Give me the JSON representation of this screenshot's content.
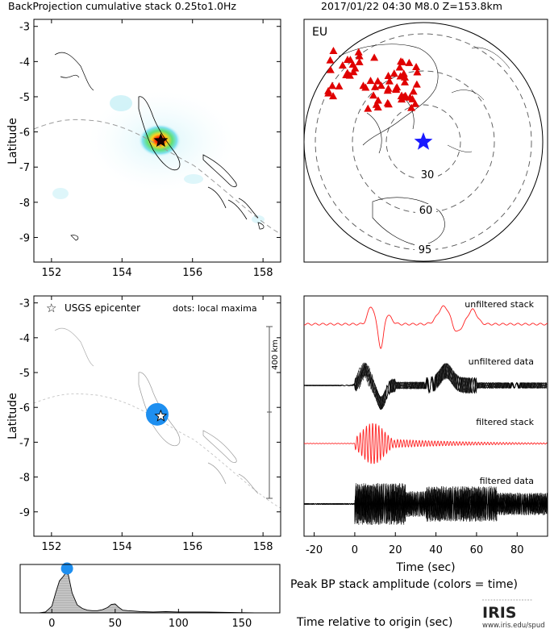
{
  "header": {
    "left_title": "BackProjection cumulative stack 0.25to1.0Hz",
    "right_title": "2017/01/22 04:30  M8.0  Z=153.8km"
  },
  "colors": {
    "frame": "#000000",
    "dashed": "#8a8a8a",
    "station": "#e00000",
    "epicenter_blue": "#1a1aff",
    "bp_blue": "#1e8ff0",
    "stack_red": "#ff2020",
    "data_black": "#000000",
    "peak_fill": "#b4b4b4"
  },
  "map_panel": {
    "ylabel": "Latitude",
    "xticks": [
      "152",
      "154",
      "156",
      "158"
    ],
    "yticks": [
      "-3",
      "-4",
      "-5",
      "-6",
      "-7",
      "-8",
      "-9"
    ],
    "epicenter_lon": 155.1,
    "epicenter_lat": -6.25
  },
  "globe_panel": {
    "region_label": "EU",
    "ring_labels": [
      "30",
      "60",
      "95"
    ]
  },
  "maxima_panel": {
    "ylabel": "Latitude",
    "xticks": [
      "152",
      "154",
      "156",
      "158"
    ],
    "yticks": [
      "-3",
      "-4",
      "-5",
      "-6",
      "-7",
      "-8",
      "-9"
    ],
    "legend_epicenter": "USGS epicenter",
    "legend_dots": "dots: local maxima",
    "scale_label": "400 km",
    "maximum_lon": 155.0,
    "maximum_lat": -6.2
  },
  "waveform_panel": {
    "xlabel": "Time (sec)",
    "xticks": [
      "-20",
      "0",
      "20",
      "40",
      "60",
      "80"
    ],
    "trace_labels": [
      "unfiltered stack",
      "unfiltered data",
      "filtered stack",
      "filtered data"
    ]
  },
  "peak_panel": {
    "title": "Peak BP stack amplitude (colors = time)",
    "xlabel": "Time relative to origin (sec)",
    "xticks": [
      "0",
      "50",
      "100",
      "150"
    ]
  },
  "logo": {
    "name": "IRIS",
    "url": "www.iris.edu/spud"
  },
  "chart_data": [
    {
      "type": "heatmap",
      "title": "BackProjection cumulative stack 0.25to1.0Hz",
      "ylabel": "Latitude",
      "xlim": [
        151.5,
        158.5
      ],
      "ylim": [
        -9.7,
        -2.8
      ],
      "peak": {
        "lon": 155.1,
        "lat": -6.25
      }
    },
    {
      "type": "scatter",
      "title": "2017/01/22 04:30  M8.0  Z=153.8km",
      "annotations": [
        "EU",
        "30",
        "60",
        "95"
      ]
    },
    {
      "type": "scatter",
      "ylabel": "Latitude",
      "xlim": [
        151.5,
        158.5
      ],
      "ylim": [
        -9.7,
        -2.8
      ],
      "points": [
        {
          "lon": 155.0,
          "lat": -6.2
        }
      ],
      "epicenter": {
        "lon": 155.1,
        "lat": -6.25
      }
    },
    {
      "type": "line",
      "xlabel": "Time (sec)",
      "xlim": [
        -25,
        95
      ],
      "series": [
        {
          "name": "unfiltered stack"
        },
        {
          "name": "unfiltered data"
        },
        {
          "name": "filtered stack"
        },
        {
          "name": "filtered data"
        }
      ]
    },
    {
      "type": "area",
      "title": "Peak BP stack amplitude (colors = time)",
      "xlabel": "Time relative to origin (sec)",
      "xlim": [
        -25,
        180
      ],
      "ylim": [
        0,
        1
      ],
      "x": [
        -25,
        -10,
        -5,
        0,
        3,
        6,
        9,
        11,
        13,
        16,
        20,
        24,
        28,
        32,
        36,
        40,
        44,
        47,
        50,
        53,
        56,
        60,
        65,
        70,
        80,
        90,
        100,
        110,
        120,
        140,
        160,
        180
      ],
      "y": [
        0.0,
        0.0,
        0.02,
        0.15,
        0.45,
        0.72,
        0.82,
        0.9,
        0.86,
        0.45,
        0.18,
        0.1,
        0.06,
        0.05,
        0.05,
        0.07,
        0.12,
        0.19,
        0.2,
        0.12,
        0.06,
        0.05,
        0.04,
        0.03,
        0.02,
        0.03,
        0.02,
        0.02,
        0.02,
        0.01,
        0.0,
        0.0
      ],
      "peak_time": 12
    }
  ]
}
